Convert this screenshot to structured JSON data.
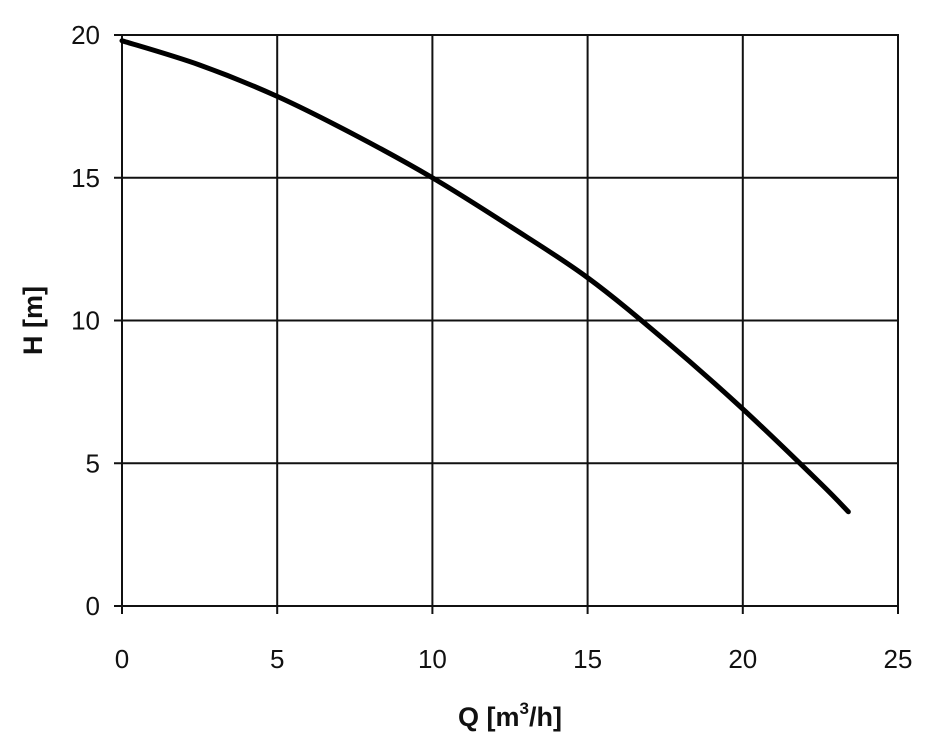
{
  "chart_data": {
    "type": "line",
    "title": "",
    "xlabel": "Q [m",
    "xlabel_superscript": "3",
    "xlabel_suffix": "/h]",
    "ylabel": "H [m]",
    "xlim": [
      0,
      25
    ],
    "ylim": [
      0,
      20
    ],
    "xticks": [
      "0",
      "5",
      "10",
      "15",
      "20",
      "25"
    ],
    "yticks": [
      "0",
      "5",
      "10",
      "15",
      "20"
    ],
    "grid": true,
    "series": [
      {
        "color": "#000000",
        "x": [
          0,
          2.5,
          5,
          7.5,
          10,
          12.5,
          15,
          17.5,
          20,
          22.5,
          23.4
        ],
        "y": [
          19.8,
          18.95,
          17.85,
          16.5,
          15.0,
          13.3,
          11.5,
          9.3,
          6.9,
          4.3,
          3.3
        ]
      }
    ]
  }
}
